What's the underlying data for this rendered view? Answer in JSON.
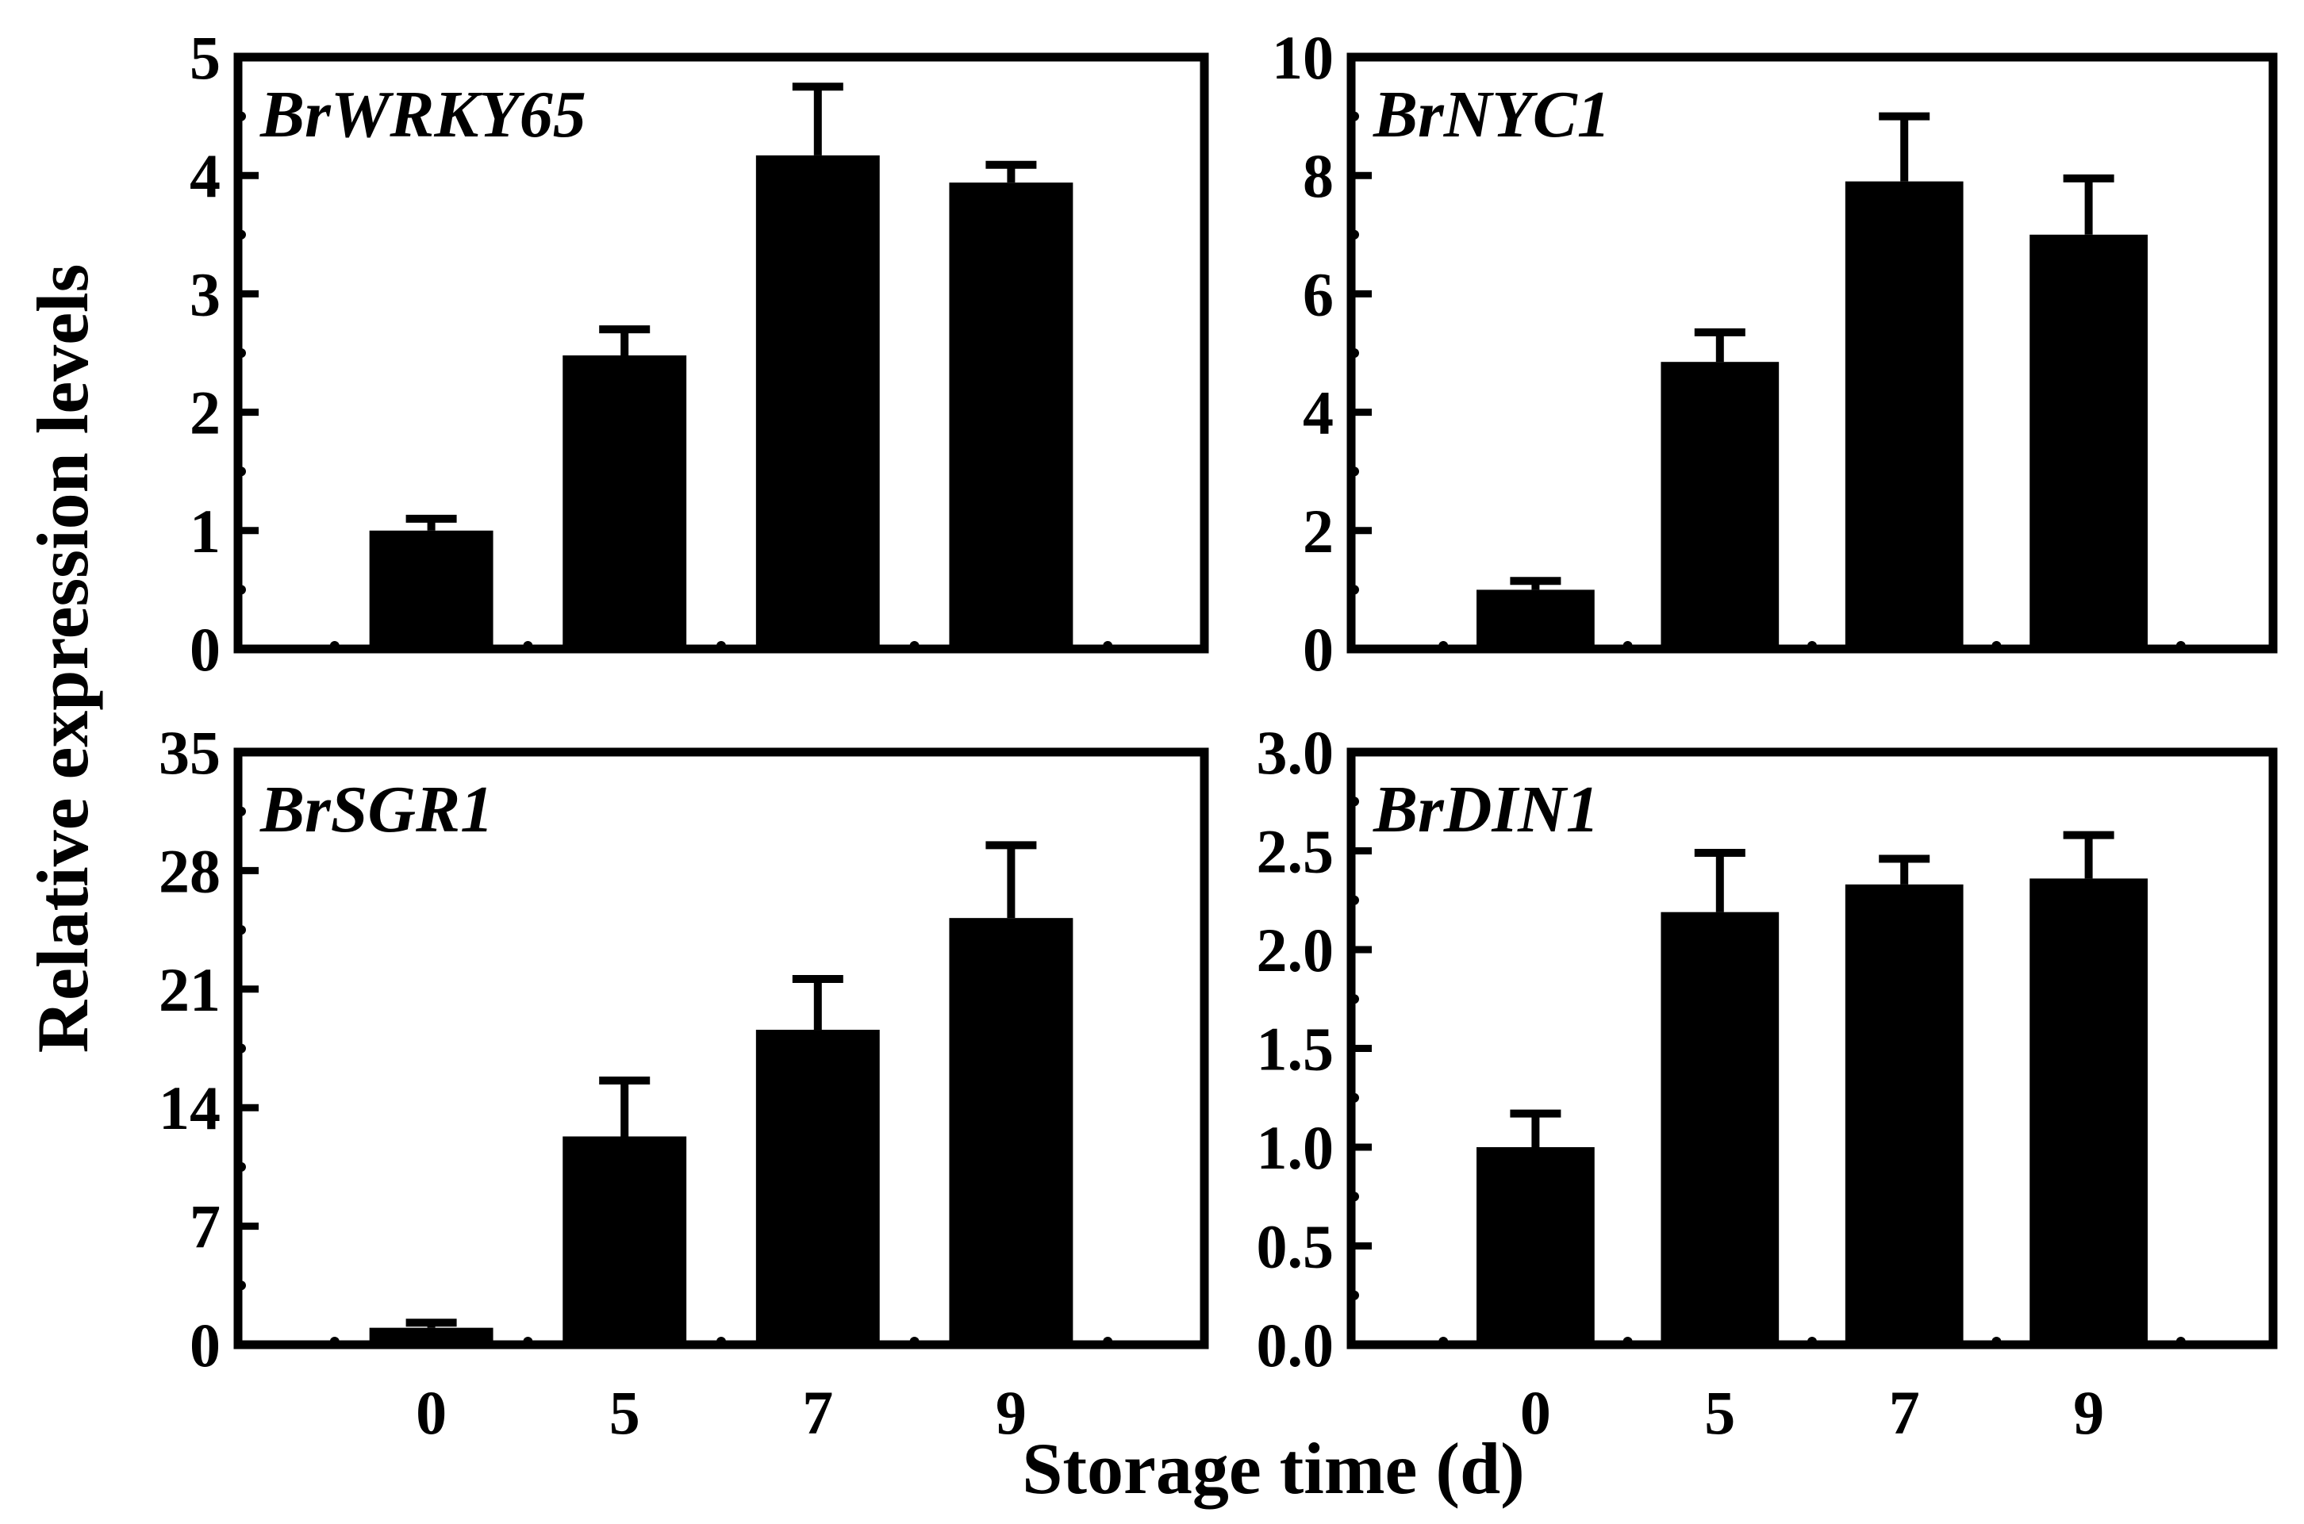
{
  "figure": {
    "ylabel": "Relative expression levels",
    "xlabel": "Storage time (d)"
  },
  "chart_data": [
    {
      "type": "bar",
      "title": "BrWRKY65",
      "categories": [
        "0",
        "5",
        "7",
        "9"
      ],
      "values": [
        1.0,
        2.48,
        4.17,
        3.94
      ],
      "errors": [
        0.1,
        0.22,
        0.58,
        0.15
      ],
      "ylim": [
        0,
        5
      ],
      "yticks": [
        "0",
        "1",
        "2",
        "3",
        "4",
        "5"
      ],
      "ytick_values": [
        0,
        1,
        2,
        3,
        4,
        5
      ],
      "bar_color": "#000000"
    },
    {
      "type": "bar",
      "title": "BrNYC1",
      "categories": [
        "0",
        "5",
        "7",
        "9"
      ],
      "values": [
        1.0,
        4.85,
        7.9,
        7.0
      ],
      "errors": [
        0.15,
        0.5,
        1.1,
        0.95
      ],
      "ylim": [
        0,
        10
      ],
      "yticks": [
        "0",
        "2",
        "4",
        "6",
        "8",
        "10"
      ],
      "ytick_values": [
        0,
        2,
        4,
        6,
        8,
        10
      ],
      "bar_color": "#000000"
    },
    {
      "type": "bar",
      "title": "BrSGR1",
      "categories": [
        "0",
        "5",
        "7",
        "9"
      ],
      "values": [
        1.0,
        12.3,
        18.6,
        25.2
      ],
      "errors": [
        0.3,
        3.3,
        3.0,
        4.3
      ],
      "ylim": [
        0,
        35
      ],
      "yticks": [
        "0",
        "7",
        "14",
        "21",
        "28",
        "35"
      ],
      "ytick_values": [
        0,
        7,
        14,
        21,
        28,
        35
      ],
      "bar_color": "#000000"
    },
    {
      "type": "bar",
      "title": "BrDIN1",
      "categories": [
        "0",
        "5",
        "7",
        "9"
      ],
      "values": [
        1.0,
        2.19,
        2.33,
        2.36
      ],
      "errors": [
        0.17,
        0.3,
        0.13,
        0.22
      ],
      "ylim": [
        0,
        3
      ],
      "yticks": [
        "0.0",
        "0.5",
        "1.0",
        "1.5",
        "2.0",
        "2.5",
        "3.0"
      ],
      "ytick_values": [
        0,
        0.5,
        1.0,
        1.5,
        2.0,
        2.5,
        3.0
      ],
      "bar_color": "#000000"
    }
  ]
}
